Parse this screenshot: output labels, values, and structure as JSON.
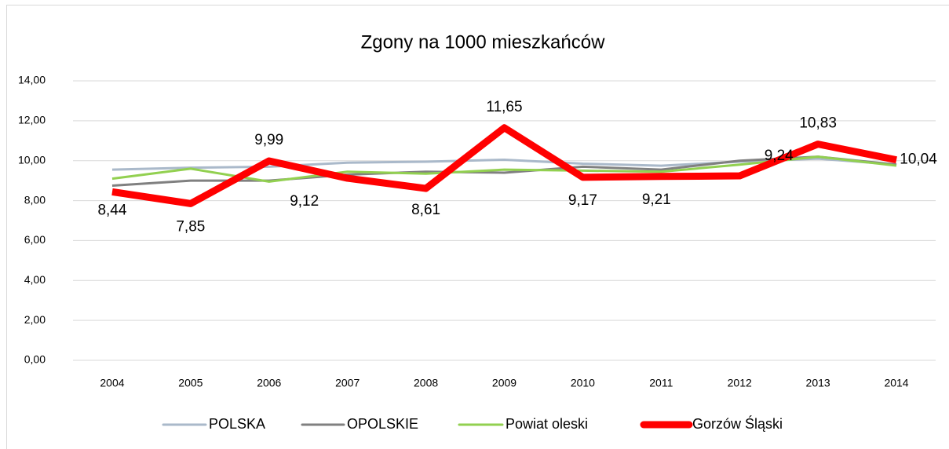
{
  "chart_data": {
    "type": "line",
    "title": "Zgony na 1000 mieszkańców",
    "categories": [
      "2004",
      "2005",
      "2006",
      "2007",
      "2008",
      "2009",
      "2010",
      "2011",
      "2012",
      "2013",
      "2014"
    ],
    "series": [
      {
        "name": "POLSKA",
        "color": "#aab9ca",
        "values": [
          9.55,
          9.65,
          9.7,
          9.9,
          9.95,
          10.05,
          9.85,
          9.75,
          9.95,
          10.1,
          9.8
        ]
      },
      {
        "name": "OPOLSKIE",
        "color": "#808080",
        "values": [
          8.75,
          9.0,
          9.0,
          9.3,
          9.45,
          9.4,
          9.7,
          9.55,
          10.0,
          10.2,
          9.8
        ]
      },
      {
        "name": "Powiat oleski",
        "color": "#92d050",
        "values": [
          9.1,
          9.6,
          8.95,
          9.45,
          9.35,
          9.55,
          9.5,
          9.45,
          9.8,
          10.2,
          9.75
        ]
      },
      {
        "name": "Gorzów Śląski",
        "color": "#ff0000",
        "values": [
          8.44,
          7.85,
          9.99,
          9.12,
          8.61,
          11.65,
          9.17,
          9.21,
          9.24,
          10.83,
          10.04
        ],
        "value_labels": [
          "8,44",
          "7,85",
          "9,99",
          "9,12",
          "8,61",
          "11,65",
          "9,17",
          "9,21",
          "9,24",
          "10,83",
          "10,04"
        ]
      }
    ],
    "ylim": [
      0,
      14
    ],
    "yticks": [
      {
        "value": 0,
        "label": "0,00"
      },
      {
        "value": 2,
        "label": "2,00"
      },
      {
        "value": 4,
        "label": "4,00"
      },
      {
        "value": 6,
        "label": "6,00"
      },
      {
        "value": 8,
        "label": "8,00"
      },
      {
        "value": 10,
        "label": "10,00"
      },
      {
        "value": 12,
        "label": "12,00"
      },
      {
        "value": 14,
        "label": "14,00"
      }
    ],
    "grid": true,
    "legend": "bottom"
  }
}
